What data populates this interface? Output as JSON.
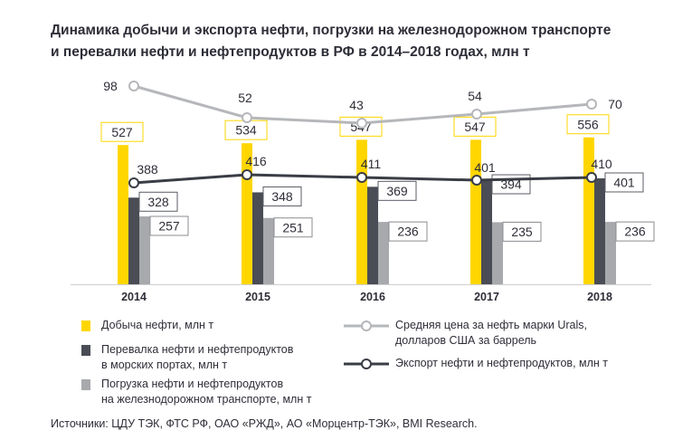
{
  "title_lines": [
    "Динамика добычи и экспорта нефти, погрузки на железнодорожном транспорте",
    "и перевалки нефти и нефтепродуктов в РФ в 2014–2018 годах, млн т"
  ],
  "colors": {
    "production": "#ffd600",
    "transshipment": "#4a4d55",
    "railway": "#a7a9ac",
    "price_line": "#b5b7ba",
    "export_line": "#3a3d45",
    "text": "#2e2e38"
  },
  "chart_data": {
    "type": "bar",
    "categories": [
      "2014",
      "2015",
      "2016",
      "2017",
      "2018"
    ],
    "series": [
      {
        "name": "Добыча нефти, млн т",
        "values": [
          527,
          534,
          547,
          547,
          556
        ]
      },
      {
        "name": "Перевалка нефти и нефтепродуктов в морских портах, млн т",
        "values": [
          328,
          348,
          369,
          394,
          401
        ]
      },
      {
        "name": "Погрузка нефти и нефтепродуктов на железнодорожном транспорте, млн т",
        "values": [
          257,
          251,
          236,
          235,
          236
        ]
      }
    ],
    "lines": [
      {
        "name": "Средняя цена за нефть марки Urals, долларов США за баррель",
        "values": [
          98,
          52,
          43,
          54,
          70
        ]
      },
      {
        "name": "Экспорт нефти и нефтепродуктов, млн т",
        "values": [
          388,
          416,
          411,
          401,
          410
        ]
      }
    ],
    "ylim": [
      0,
      560
    ]
  },
  "legend": {
    "production": [
      "Добыча нефти, млн т"
    ],
    "transshipment": [
      "Перевалка нефти и нефтепродуктов",
      "в морских портах, млн т"
    ],
    "railway": [
      "Погрузка нефти и нефтепродуктов",
      "на железнодорожном транспорте, млн т"
    ],
    "price": [
      "Средняя цена за нефть марки Urals,",
      "долларов США за баррель"
    ],
    "export": [
      "Экспорт нефти и нефтепродуктов, млн т"
    ]
  },
  "source": "Источники: ЦДУ ТЭК, ФТС РФ, ОАО «РЖД», АО «Морцентр-ТЭК», BMI Research."
}
